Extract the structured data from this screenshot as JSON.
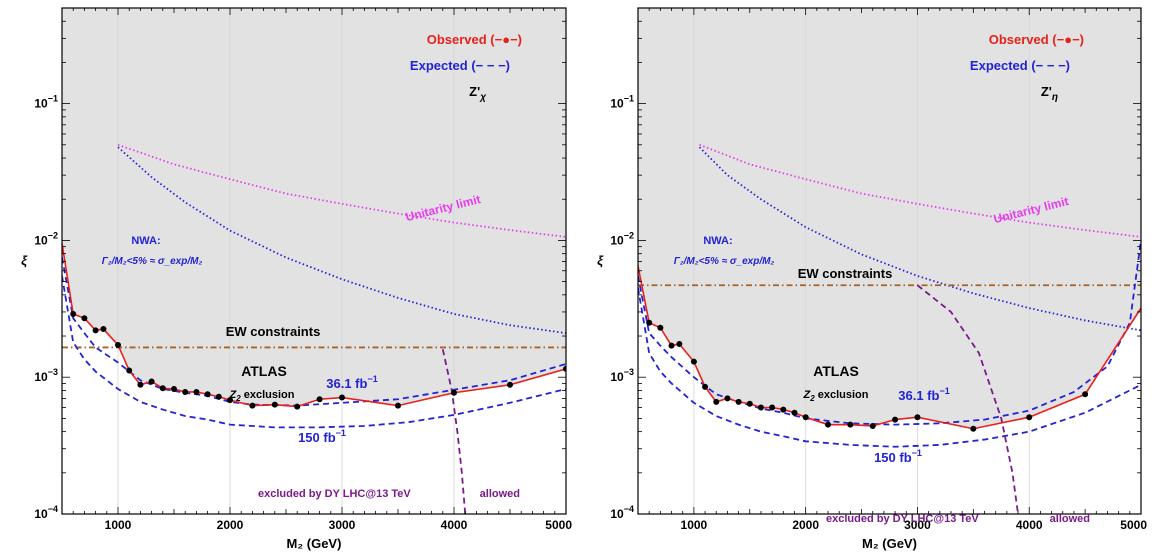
{
  "chart_data": [
    {
      "type": "line",
      "xlabel": "M₂ (GeV)",
      "ylabel": "ξ",
      "xlim": [
        500,
        5000
      ],
      "ylim": [
        0.0001,
        0.5
      ],
      "y_scale": "log",
      "x_ticks": [
        "1000",
        "2000",
        "3000",
        "4000",
        "5000"
      ],
      "y_ticks": [
        {
          "value": 0.0001,
          "base": "10",
          "exp": "−4"
        },
        {
          "value": 0.001,
          "base": "10",
          "exp": "−3"
        },
        {
          "value": 0.01,
          "base": "10",
          "exp": "−2"
        },
        {
          "value": 0.1,
          "base": "10",
          "exp": "−1"
        }
      ],
      "legend": {
        "observed": "Observed (−●−)",
        "expected": "Expected (− − −)",
        "model": "Z'",
        "model_sub": "χ"
      },
      "labels": {
        "atlas": "ATLAS",
        "exclusion_pre": "Z",
        "exclusion_sub": "2",
        "exclusion_post": " exclusion",
        "lumi_36": "36.1 fb",
        "lumi_150": "150 fb",
        "lumi_exp": "−1",
        "ew": "EW constraints",
        "unitarity": "Unitarity limit",
        "nwa_title": "NWA:",
        "nwa_formula": "Γ₂/M₂<5% ≈ σ_exp/M₂",
        "dy_excluded": "excluded by DY LHC@13 TeV",
        "dy_allowed": "allowed"
      },
      "colors": {
        "observed": "#e8211b",
        "expected": "#2323d6",
        "unitarity": "#e83bf0",
        "nwa": "#2323d6",
        "ew": "#a5632b",
        "dy": "#7b1a8c",
        "excluded_region": "#e2e2e2"
      },
      "series": [
        {
          "key": "observed",
          "x": [
            500,
            600,
            700,
            800,
            870,
            1000,
            1100,
            1200,
            1300,
            1400,
            1500,
            1600,
            1700,
            1800,
            1900,
            2000,
            2200,
            2400,
            2600,
            2800,
            3000,
            3500,
            4000,
            4500,
            5000
          ],
          "y": [
            0.0095,
            0.0029,
            0.0027,
            0.0022,
            0.00225,
            0.00172,
            0.00112,
            0.00088,
            0.00093,
            0.00083,
            0.00082,
            0.00078,
            0.00078,
            0.00075,
            0.00072,
            0.00068,
            0.00062,
            0.00063,
            0.00061,
            0.00069,
            0.00071,
            0.00062,
            0.00077,
            0.00088,
            0.00115
          ]
        },
        {
          "key": "observed_points",
          "x": [
            600,
            700,
            800,
            870,
            1000,
            1100,
            1200,
            1300,
            1400,
            1500,
            1600,
            1700,
            1800,
            1900,
            2000,
            2200,
            2400,
            2600,
            2800,
            3000,
            3500,
            4000,
            4500,
            5000
          ],
          "y": [
            0.0029,
            0.0027,
            0.0022,
            0.00225,
            0.00172,
            0.00112,
            0.00088,
            0.00093,
            0.00083,
            0.00082,
            0.00078,
            0.00078,
            0.00075,
            0.00072,
            0.00068,
            0.00062,
            0.00063,
            0.00061,
            0.00069,
            0.00071,
            0.00062,
            0.00077,
            0.00088,
            0.00115
          ]
        },
        {
          "key": "expected_36",
          "x": [
            500,
            600,
            700,
            800,
            1000,
            1200,
            1400,
            1600,
            1800,
            2000,
            2200,
            2600,
            3000,
            3500,
            4000,
            4500,
            5000
          ],
          "y": [
            0.0075,
            0.0027,
            0.0021,
            0.00165,
            0.00128,
            0.00095,
            0.00082,
            0.00077,
            0.00073,
            0.00066,
            0.00063,
            0.00062,
            0.00065,
            0.00069,
            0.00081,
            0.00095,
            0.00125
          ]
        },
        {
          "key": "expected_150",
          "x": [
            500,
            600,
            700,
            800,
            1000,
            1200,
            1400,
            1600,
            1800,
            2000,
            2400,
            2800,
            3200,
            3600,
            4000,
            4500,
            5000
          ],
          "y": [
            0.0055,
            0.0018,
            0.00135,
            0.0011,
            0.00082,
            0.00066,
            0.00058,
            0.00052,
            0.00049,
            0.00045,
            0.00043,
            0.00043,
            0.00044,
            0.00047,
            0.00053,
            0.00065,
            0.00082
          ]
        },
        {
          "key": "unitarity",
          "x": [
            1000,
            1500,
            2000,
            2500,
            3000,
            3500,
            4000,
            4500,
            5000
          ],
          "y": [
            0.05,
            0.036,
            0.028,
            0.022,
            0.0185,
            0.0157,
            0.0135,
            0.0119,
            0.0106
          ]
        },
        {
          "key": "nwa",
          "x": [
            1000,
            1300,
            1600,
            2000,
            2500,
            3000,
            3500,
            4000,
            4500,
            5000
          ],
          "y": [
            0.048,
            0.029,
            0.019,
            0.0118,
            0.0075,
            0.0052,
            0.0038,
            0.0029,
            0.0024,
            0.0021
          ]
        },
        {
          "key": "ew",
          "x": [
            500,
            5000
          ],
          "y": [
            0.00165,
            0.00165
          ]
        },
        {
          "key": "dy",
          "x": [
            3900,
            3980,
            4030,
            4070,
            4100
          ],
          "y": [
            0.0016,
            0.0008,
            0.0004,
            0.0002,
            0.0001
          ]
        }
      ]
    },
    {
      "type": "line",
      "xlabel": "M₂ (GeV)",
      "ylabel": "ξ",
      "xlim": [
        500,
        5000
      ],
      "ylim": [
        0.0001,
        0.5
      ],
      "y_scale": "log",
      "x_ticks": [
        "1000",
        "2000",
        "3000",
        "4000",
        "5000"
      ],
      "y_ticks": [
        {
          "value": 0.0001,
          "base": "10",
          "exp": "−4"
        },
        {
          "value": 0.001,
          "base": "10",
          "exp": "−3"
        },
        {
          "value": 0.01,
          "base": "10",
          "exp": "−2"
        },
        {
          "value": 0.1,
          "base": "10",
          "exp": "−1"
        }
      ],
      "legend": {
        "observed": "Observed (−●−)",
        "expected": "Expected (− − −)",
        "model": "Z'",
        "model_sub": "η"
      },
      "labels": {
        "atlas": "ATLAS",
        "exclusion_pre": "Z",
        "exclusion_sub": "2",
        "exclusion_post": " exclusion",
        "lumi_36": "36.1 fb",
        "lumi_150": "150 fb",
        "lumi_exp": "−1",
        "ew": "EW constraints",
        "unitarity": "Unitarity limit",
        "nwa_title": "NWA:",
        "nwa_formula": "Γ₂/M₂<5% ≈ σ_exp/M₂",
        "dy_excluded": "excluded by DY LHC@13 TeV",
        "dy_allowed": "allowed"
      },
      "colors": {
        "observed": "#e8211b",
        "expected": "#2323d6",
        "unitarity": "#e83bf0",
        "nwa": "#2323d6",
        "ew": "#a5632b",
        "dy": "#7b1a8c",
        "excluded_region": "#e2e2e2"
      },
      "series": [
        {
          "key": "observed",
          "x": [
            500,
            600,
            700,
            800,
            870,
            1000,
            1100,
            1200,
            1300,
            1400,
            1500,
            1600,
            1700,
            1800,
            1900,
            2000,
            2200,
            2400,
            2600,
            2800,
            3000,
            3500,
            4000,
            4500,
            5000
          ],
          "y": [
            0.0065,
            0.0025,
            0.0023,
            0.0017,
            0.00175,
            0.0013,
            0.00085,
            0.00066,
            0.0007,
            0.00066,
            0.00064,
            0.0006,
            0.0006,
            0.00058,
            0.00055,
            0.00051,
            0.00045,
            0.00045,
            0.00044,
            0.00049,
            0.00051,
            0.00042,
            0.00051,
            0.00075,
            0.0032
          ]
        },
        {
          "key": "observed_points",
          "x": [
            600,
            700,
            800,
            870,
            1000,
            1100,
            1200,
            1300,
            1400,
            1500,
            1600,
            1700,
            1800,
            1900,
            2000,
            2200,
            2400,
            2600,
            2800,
            3000,
            3500,
            4000,
            4500
          ],
          "y": [
            0.0025,
            0.0023,
            0.0017,
            0.00175,
            0.0013,
            0.00085,
            0.00066,
            0.0007,
            0.00066,
            0.00064,
            0.0006,
            0.0006,
            0.00058,
            0.00055,
            0.00051,
            0.00045,
            0.00045,
            0.00044,
            0.00049,
            0.00051,
            0.00042,
            0.00051,
            0.00075
          ]
        },
        {
          "key": "expected_36",
          "x": [
            500,
            600,
            700,
            800,
            1000,
            1200,
            1400,
            1600,
            1800,
            2000,
            2400,
            2800,
            3200,
            3600,
            4000,
            4400,
            4700,
            4900,
            5000
          ],
          "y": [
            0.0055,
            0.0021,
            0.0017,
            0.0014,
            0.001,
            0.00075,
            0.00066,
            0.00059,
            0.00055,
            0.0005,
            0.00046,
            0.00045,
            0.00046,
            0.00049,
            0.00057,
            0.00078,
            0.0012,
            0.0025,
            0.01
          ]
        },
        {
          "key": "expected_150",
          "x": [
            500,
            600,
            700,
            800,
            1000,
            1200,
            1400,
            1600,
            1800,
            2000,
            2400,
            2800,
            3200,
            3600,
            4000,
            4500,
            5000
          ],
          "y": [
            0.0045,
            0.0015,
            0.0011,
            0.0009,
            0.00065,
            0.00052,
            0.00045,
            0.0004,
            0.00037,
            0.00034,
            0.00032,
            0.00031,
            0.00032,
            0.00035,
            0.0004,
            0.00055,
            0.00088
          ]
        },
        {
          "key": "unitarity",
          "x": [
            1050,
            1500,
            2000,
            2500,
            3000,
            3500,
            4000,
            4500,
            5000
          ],
          "y": [
            0.05,
            0.036,
            0.028,
            0.022,
            0.0185,
            0.0157,
            0.0135,
            0.0119,
            0.0106
          ]
        },
        {
          "key": "nwa",
          "x": [
            1050,
            1300,
            1600,
            2000,
            2500,
            3000,
            3500,
            4000,
            4500,
            5000
          ],
          "y": [
            0.048,
            0.03,
            0.02,
            0.0125,
            0.0079,
            0.0055,
            0.0041,
            0.0032,
            0.0026,
            0.0022
          ]
        },
        {
          "key": "ew",
          "x": [
            500,
            5000
          ],
          "y": [
            0.0047,
            0.0047
          ]
        },
        {
          "key": "dy",
          "x": [
            3000,
            3300,
            3550,
            3750,
            3850,
            3900
          ],
          "y": [
            0.0047,
            0.003,
            0.0015,
            0.0005,
            0.0002,
            0.0001
          ]
        }
      ]
    }
  ]
}
